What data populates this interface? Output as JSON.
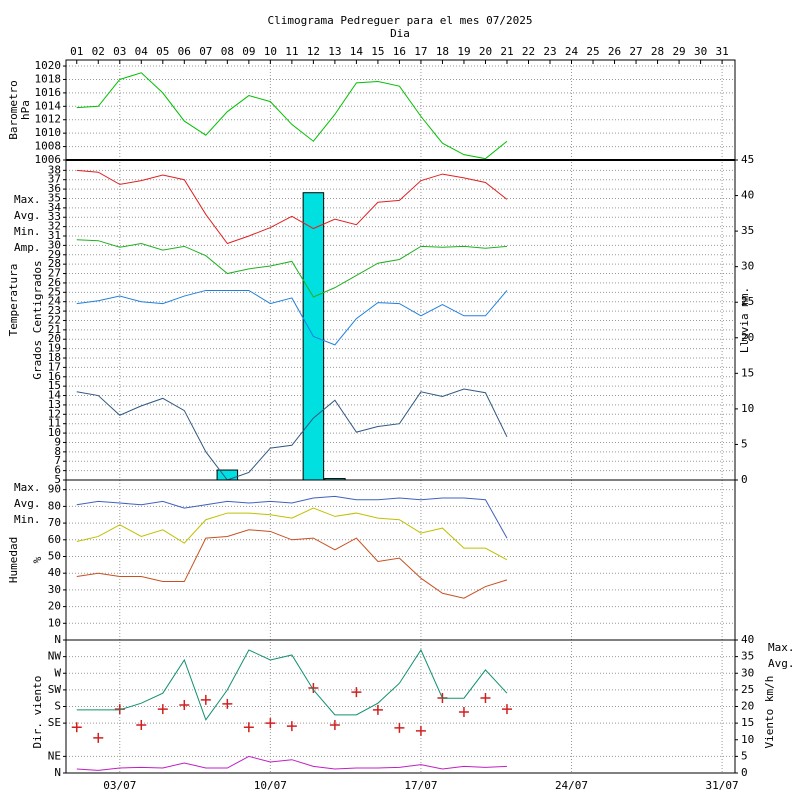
{
  "chart_data": [
    {
      "type": "line",
      "title": "Climograma Pedreguer para el mes 07/2025",
      "xlabel": "Dia",
      "x": [
        1,
        2,
        3,
        4,
        5,
        6,
        7,
        8,
        9,
        10,
        11,
        12,
        13,
        14,
        15,
        16,
        17,
        18,
        19,
        20,
        21
      ],
      "xlim": [
        0.5,
        31.6
      ],
      "top_ticks": [
        {
          "value": 1,
          "label": "01"
        },
        {
          "value": 2,
          "label": "02"
        },
        {
          "value": 3,
          "label": "03"
        },
        {
          "value": 4,
          "label": "04"
        },
        {
          "value": 5,
          "label": "05"
        },
        {
          "value": 6,
          "label": "06"
        },
        {
          "value": 7,
          "label": "07"
        },
        {
          "value": 8,
          "label": "08"
        },
        {
          "value": 9,
          "label": "09"
        },
        10,
        11,
        12,
        13,
        14,
        15,
        16,
        17,
        18,
        19,
        20,
        21,
        22,
        23,
        24,
        25,
        26,
        27,
        28,
        29,
        30,
        31
      ],
      "xticks": [
        {
          "value": 3,
          "label": "03/07"
        },
        {
          "value": 10,
          "label": "10/07"
        },
        {
          "value": 17,
          "label": "17/07"
        },
        {
          "value": 24,
          "label": "24/07"
        },
        {
          "value": 31,
          "label": "31/07"
        }
      ],
      "ylabel": [
        "Barometro",
        "hPa"
      ],
      "ylabel_color": "#00b000",
      "ylim": [
        1006,
        1020.9
      ],
      "yticks": [
        1006,
        1008,
        1010,
        1012,
        1014,
        1016,
        1018,
        1020
      ],
      "series": [
        {
          "color": "#00c000",
          "values": [
            1013.8,
            1014,
            1018,
            1019,
            1016,
            1011.8,
            1009.7,
            1013.2,
            1015.6,
            1014.7,
            1011.3,
            1008.8,
            1012.8,
            1017.5,
            1017.7,
            1017,
            1012.5,
            1008.5,
            1006.8,
            1006.2,
            1008.8
          ]
        }
      ]
    },
    {
      "type": "line",
      "ylabel": [
        "Temperatura",
        "Grados Centigrados"
      ],
      "ylabel_color": "#e00000",
      "y2label": "Lluvia mm.",
      "y2label_color": "#00d0d0",
      "legend": "left",
      "ylim": [
        5,
        39.1
      ],
      "yticks": [
        5,
        6,
        7,
        8,
        9,
        10,
        11,
        12,
        13,
        14,
        15,
        16,
        17,
        18,
        19,
        20,
        21,
        22,
        23,
        24,
        25,
        26,
        27,
        28,
        29,
        30,
        31,
        32,
        33,
        34,
        35,
        36,
        37,
        38
      ],
      "y2lim": [
        0,
        45
      ],
      "y2ticks": [
        0,
        5,
        10,
        15,
        20,
        25,
        30,
        35,
        40,
        45
      ],
      "series": [
        {
          "type": "bar",
          "axis": "y2",
          "color": "#00e0e0",
          "values": [
            0,
            0,
            0,
            0,
            0,
            0,
            0,
            1.4,
            0,
            0,
            0,
            40.4,
            0.2,
            0,
            0,
            0,
            0,
            0,
            0,
            0,
            0
          ]
        },
        {
          "name": "Max.",
          "color": "#e02020",
          "values": [
            38,
            37.8,
            36.5,
            36.9,
            37.5,
            37,
            33.3,
            30.2,
            31,
            31.9,
            33.1,
            31.8,
            32.8,
            32.2,
            34.6,
            34.8,
            36.9,
            37.6,
            37.2,
            36.7,
            34.9
          ]
        },
        {
          "name": "Avg.",
          "color": "#20b020",
          "values": [
            30.6,
            30.5,
            29.8,
            30.2,
            29.5,
            29.9,
            28.9,
            27,
            27.5,
            27.8,
            28.3,
            24.5,
            25.5,
            26.8,
            28.1,
            28.5,
            29.9,
            29.8,
            29.9,
            29.7,
            29.9
          ]
        },
        {
          "name": "Min.",
          "color": "#2080e0",
          "values": [
            23.8,
            24.1,
            24.6,
            24,
            23.8,
            24.6,
            25.2,
            25.2,
            25.2,
            23.8,
            24.4,
            20.3,
            19.4,
            22.2,
            23.9,
            23.8,
            22.5,
            23.7,
            22.5,
            22.5,
            25.2
          ]
        },
        {
          "name": "Amp.",
          "color": "#305880",
          "values": [
            14.4,
            14,
            11.9,
            12.9,
            13.7,
            12.4,
            8,
            5,
            5.8,
            8.4,
            8.7,
            11.6,
            13.5,
            10.1,
            10.7,
            11,
            14.4,
            13.9,
            14.7,
            14.3,
            9.6
          ]
        }
      ]
    },
    {
      "type": "line",
      "ylabel": [
        "Humedad",
        "%"
      ],
      "ylabel_color": "#c04000",
      "legend": "left",
      "ylim": [
        0,
        95.8
      ],
      "yticks": [
        10,
        20,
        30,
        40,
        50,
        60,
        70,
        80,
        90
      ],
      "series": [
        {
          "name": "Max.",
          "color": "#4060c0",
          "values": [
            81,
            83,
            82,
            81,
            83,
            79,
            81,
            83,
            82,
            83,
            82,
            85,
            86,
            84,
            84,
            85,
            84,
            85,
            85,
            84,
            61
          ]
        },
        {
          "name": "Avg.",
          "color": "#c0c000",
          "values": [
            59,
            62,
            69,
            62,
            66,
            58,
            72,
            76,
            76,
            75,
            73,
            79,
            74,
            76,
            73,
            72,
            64,
            67,
            55,
            55,
            48
          ]
        },
        {
          "name": "Min.",
          "color": "#c85020",
          "values": [
            38,
            40,
            38,
            38,
            35,
            35,
            61,
            62,
            66,
            65,
            60,
            61,
            54,
            61,
            47,
            49,
            37,
            28,
            25,
            32,
            36
          ]
        }
      ]
    },
    {
      "type": "line",
      "ylabel": [
        "Dir. viento"
      ],
      "ylabel_color": "#e00000",
      "y2label": "Viento km/h",
      "y2label_color": "#c000c0",
      "legend": "right",
      "ylim": [
        0,
        360
      ],
      "yticks": [
        {
          "value": 0,
          "label": "N"
        },
        {
          "value": 45,
          "label": "NE"
        },
        {
          "value": 135,
          "label": "SE"
        },
        {
          "value": 180,
          "label": "S"
        },
        {
          "value": 225,
          "label": "SW"
        },
        {
          "value": 270,
          "label": "W"
        },
        {
          "value": 315,
          "label": "NW"
        },
        {
          "value": 360,
          "label": "N"
        }
      ],
      "y2lim": [
        0,
        40
      ],
      "y2ticks": [
        0,
        5,
        10,
        15,
        20,
        25,
        30,
        35,
        40
      ],
      "series": [
        {
          "marker": "+",
          "color": "#d02020",
          "values": [
            124,
            95,
            173,
            130,
            173,
            184,
            198,
            187,
            124,
            135,
            127,
            230,
            130,
            219,
            171,
            122,
            114,
            203,
            165,
            203,
            173
          ]
        },
        {
          "name": "Max.",
          "axis": "y2",
          "color": "#109070",
          "values": [
            19,
            19,
            19,
            21,
            24,
            34,
            16,
            25,
            37,
            34,
            35.5,
            25,
            17.5,
            17.5,
            21,
            27,
            37,
            22.5,
            22.5,
            31,
            24
          ]
        },
        {
          "name": "Avg.",
          "axis": "y2",
          "color": "#c020c0",
          "values": [
            1.2,
            0.8,
            1.5,
            1.7,
            1.5,
            3,
            1.5,
            1.5,
            5,
            3.3,
            4,
            2,
            1.2,
            1.5,
            1.5,
            1.7,
            2.5,
            1.2,
            2,
            1.7,
            2
          ]
        }
      ]
    }
  ]
}
